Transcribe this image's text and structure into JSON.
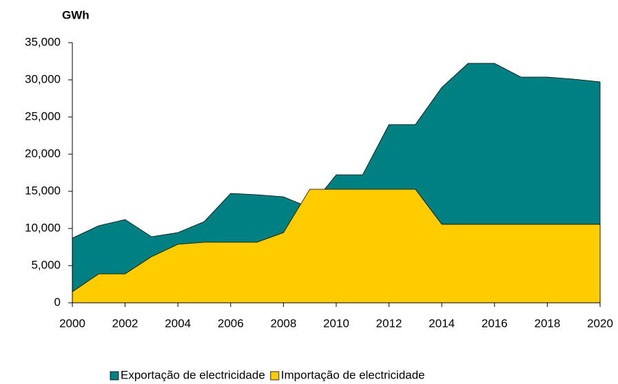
{
  "chart_data": {
    "type": "area",
    "y_label": "GWh",
    "x": [
      2000,
      2001,
      2002,
      2003,
      2004,
      2005,
      2006,
      2007,
      2008,
      2009,
      2010,
      2011,
      2012,
      2013,
      2014,
      2015,
      2016,
      2017,
      2018,
      2019,
      2020
    ],
    "series": [
      {
        "name": "Exportação de electricidade",
        "color": "#008080",
        "values": [
          8700,
          10370,
          11200,
          8890,
          9440,
          10930,
          14720,
          14540,
          14260,
          12800,
          17220,
          17220,
          23980,
          23980,
          28980,
          32220,
          32220,
          30370,
          30370,
          30090,
          29720
        ]
      },
      {
        "name": "Importação de electricidade",
        "color": "#ffcc00",
        "values": [
          1480,
          3890,
          3890,
          6200,
          7870,
          8150,
          8150,
          8150,
          9440,
          15280,
          15280,
          15280,
          15280,
          15280,
          10560,
          10560,
          10560,
          10560,
          10560,
          10560,
          10560
        ]
      }
    ],
    "xlim": [
      2000,
      2020
    ],
    "xticks": [
      2000,
      2002,
      2004,
      2006,
      2008,
      2010,
      2012,
      2014,
      2016,
      2018,
      2020
    ],
    "ylim": [
      0,
      35000
    ],
    "yticks": [
      0,
      {
        "value": 5000,
        "label": "5,000"
      },
      {
        "value": 10000,
        "label": "10,000"
      },
      {
        "value": 15000,
        "label": "15,000"
      },
      {
        "value": 20000,
        "label": "20,000"
      },
      {
        "value": 25000,
        "label": "25,000"
      },
      {
        "value": 30000,
        "label": "30,000"
      },
      {
        "value": 35000,
        "label": "35,000"
      }
    ],
    "legend": "bottom"
  }
}
